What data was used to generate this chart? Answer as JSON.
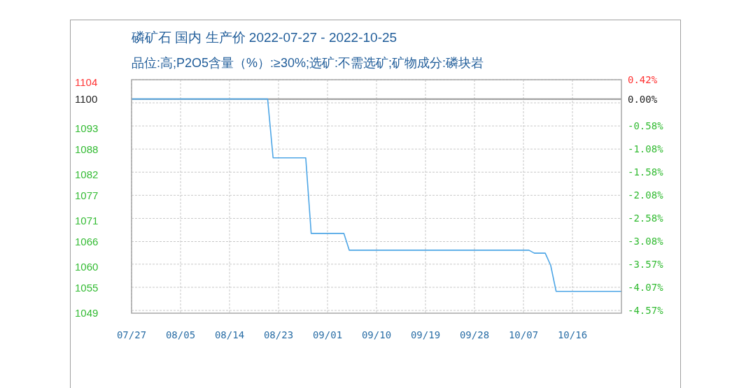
{
  "chart_data": {
    "type": "line",
    "title": "磷矿石 国内 生产价 2022-07-27 - 2022-10-25",
    "subtitle": "品位:高;P2O5含量（%）:≥30%;选矿:不需选矿;矿物成分:磷块岩",
    "x": [
      "2022-07-27",
      "2022-08-21",
      "2022-08-22",
      "2022-08-28",
      "2022-08-29",
      "2022-09-04",
      "2022-09-05",
      "2022-10-08",
      "2022-10-09",
      "2022-10-11",
      "2022-10-12",
      "2022-10-13",
      "2022-10-25"
    ],
    "series": [
      {
        "color": "#4ea6e6",
        "values": [
          1100,
          1100,
          1086,
          1086,
          1068,
          1068,
          1064,
          1064,
          1063.3,
          1063.3,
          1060.4,
          1054.2,
          1054.2
        ]
      }
    ],
    "xlim": [
      "2022-07-27",
      "2022-10-25"
    ],
    "xticks": [
      {
        "value": "2022-07-27",
        "label": "07/27"
      },
      {
        "value": "2022-08-05",
        "label": "08/05"
      },
      {
        "value": "2022-08-14",
        "label": "08/14"
      },
      {
        "value": "2022-08-23",
        "label": "08/23"
      },
      {
        "value": "2022-09-01",
        "label": "09/01"
      },
      {
        "value": "2022-09-10",
        "label": "09/10"
      },
      {
        "value": "2022-09-19",
        "label": "09/19"
      },
      {
        "value": "2022-09-28",
        "label": "09/28"
      },
      {
        "value": "2022-10-07",
        "label": "10/07"
      },
      {
        "value": "2022-10-16",
        "label": "10/16"
      }
    ],
    "ylim": [
      1049,
      1104.6
    ],
    "yticks": [
      1104,
      1100,
      1093,
      1088,
      1082,
      1077,
      1071,
      1066,
      1060,
      1055,
      1049
    ],
    "y2lim": [
      -4.63,
      0.42
    ],
    "y2ticks": [
      {
        "value": 0.42,
        "label": "0.42%"
      },
      {
        "value": 0,
        "label": "0.00%"
      },
      {
        "value": -0.08,
        "label": null
      },
      {
        "value": -0.58,
        "label": "-0.58%"
      },
      {
        "value": -1.08,
        "label": "-1.08%"
      },
      {
        "value": -1.58,
        "label": "-1.58%"
      },
      {
        "value": -2.08,
        "label": "-2.08%"
      },
      {
        "value": -2.58,
        "label": "-2.58%"
      },
      {
        "value": -3.08,
        "label": "-3.08%"
      },
      {
        "value": -3.57,
        "label": "-3.57%"
      },
      {
        "value": -4.07,
        "label": "-4.07%"
      },
      {
        "value": -4.57,
        "label": "-4.57%"
      }
    ],
    "ref_lines": [
      {
        "axis": "y",
        "value": 1100,
        "color": "#999999"
      }
    ],
    "grid": true,
    "marker": "none",
    "line_style": "solid"
  }
}
